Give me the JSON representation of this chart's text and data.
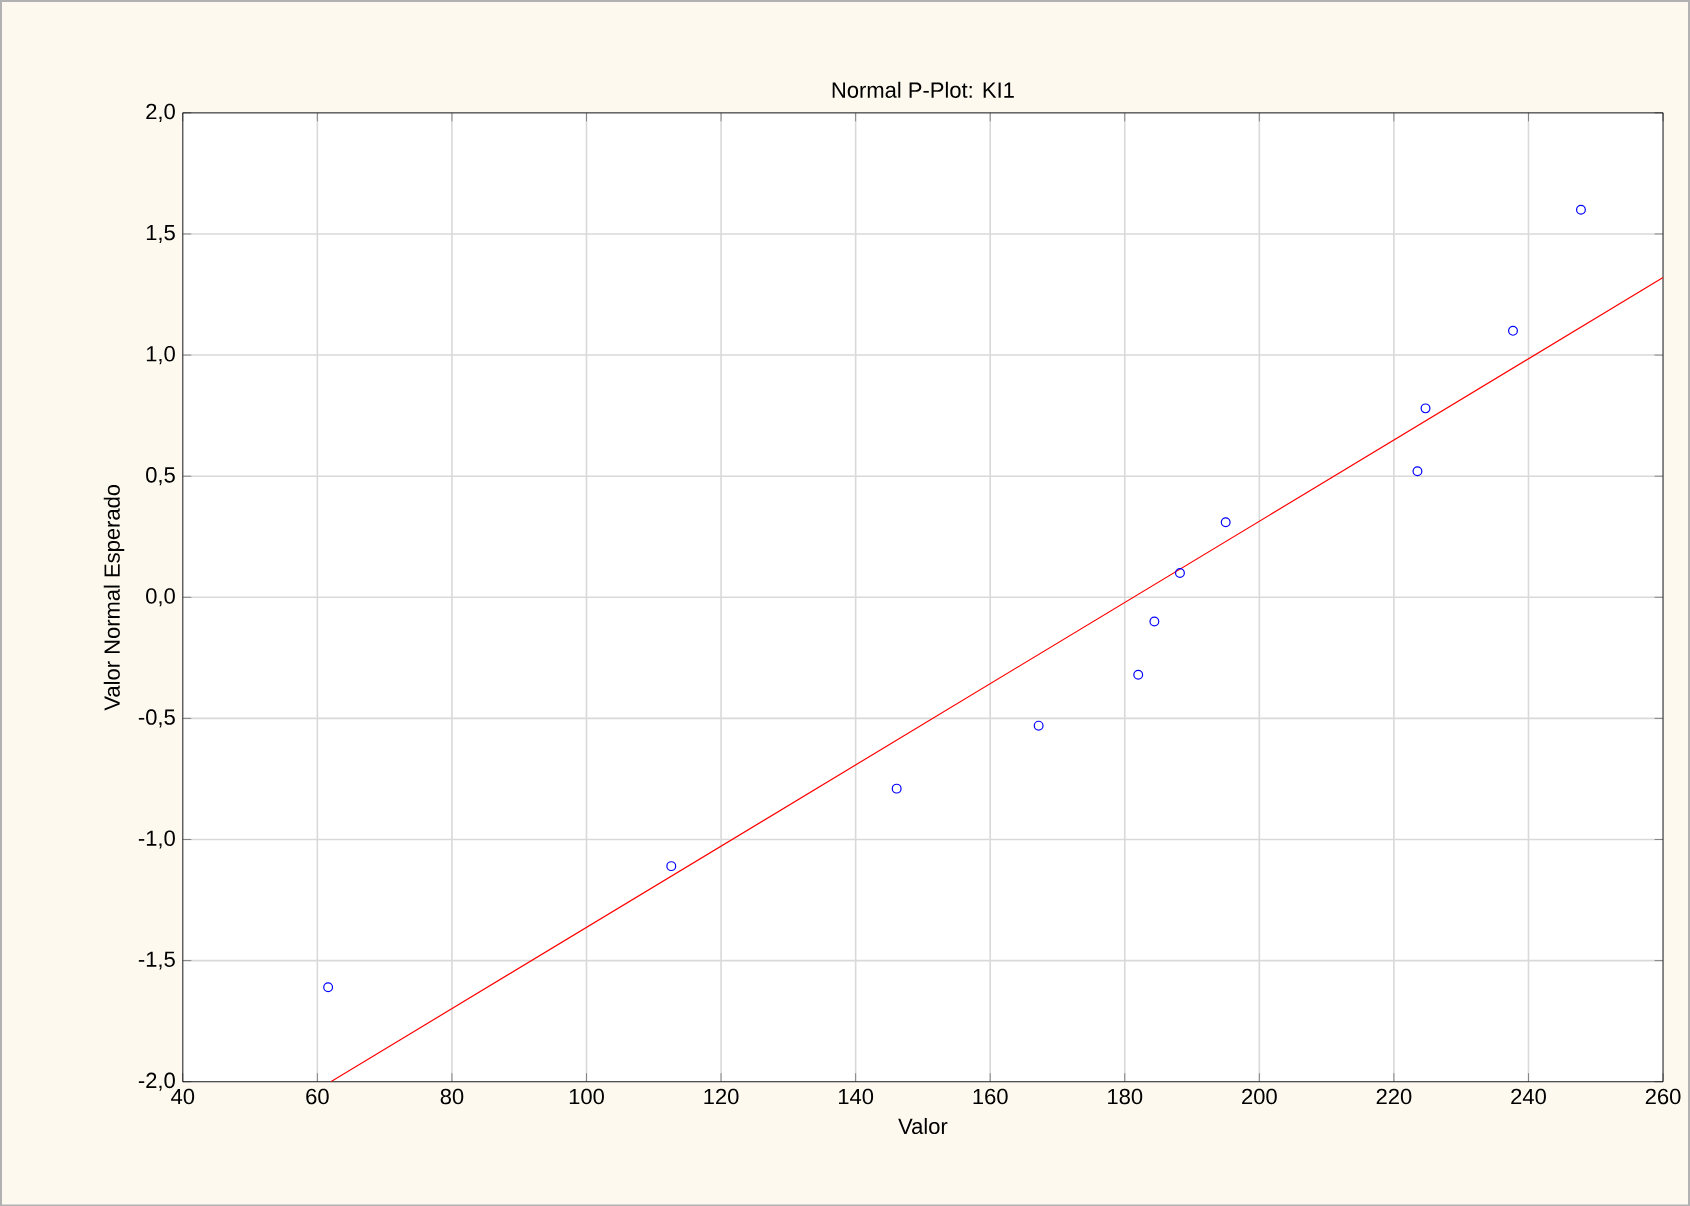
{
  "chart_data": {
    "type": "scatter",
    "title": "Normal P-Plot: KI1",
    "xlabel": "Valor",
    "ylabel": "Valor Normal Esperado",
    "series": [
      {
        "color": "#0000ff",
        "marker": "circle",
        "x": [
          61.6,
          112.6,
          146.1,
          167.2,
          182,
          184.4,
          188.2,
          195,
          223.5,
          224.7,
          237.7,
          247.8
        ],
        "values": [
          -1.61,
          -1.11,
          -0.79,
          -0.53,
          -0.32,
          -0.1,
          0.1,
          0.31,
          0.52,
          0.78,
          1.1,
          1.6
        ]
      },
      {
        "type": "line",
        "color": "#ff0000",
        "marker": "none",
        "x": [
          62,
          260
        ],
        "values": [
          -2.0,
          1.32
        ]
      }
    ],
    "xlim": [
      40,
      260
    ],
    "ylim": [
      -2.0,
      2.0
    ],
    "xticks": [
      40,
      60,
      80,
      100,
      120,
      140,
      160,
      180,
      200,
      220,
      240,
      260
    ],
    "yticks": [
      {
        "value": -2.0,
        "label": "-2,0"
      },
      {
        "value": -1.5,
        "label": "-1,5"
      },
      {
        "value": -1.0,
        "label": "-1,0"
      },
      {
        "value": -0.5,
        "label": "-0,5"
      },
      {
        "value": 0.0,
        "label": "0,0"
      },
      {
        "value": 0.5,
        "label": "0,5"
      },
      {
        "value": 1.0,
        "label": "1,0"
      },
      {
        "value": 1.5,
        "label": "1,5"
      },
      {
        "value": 2.0,
        "label": "2,0"
      }
    ],
    "grid": true
  }
}
